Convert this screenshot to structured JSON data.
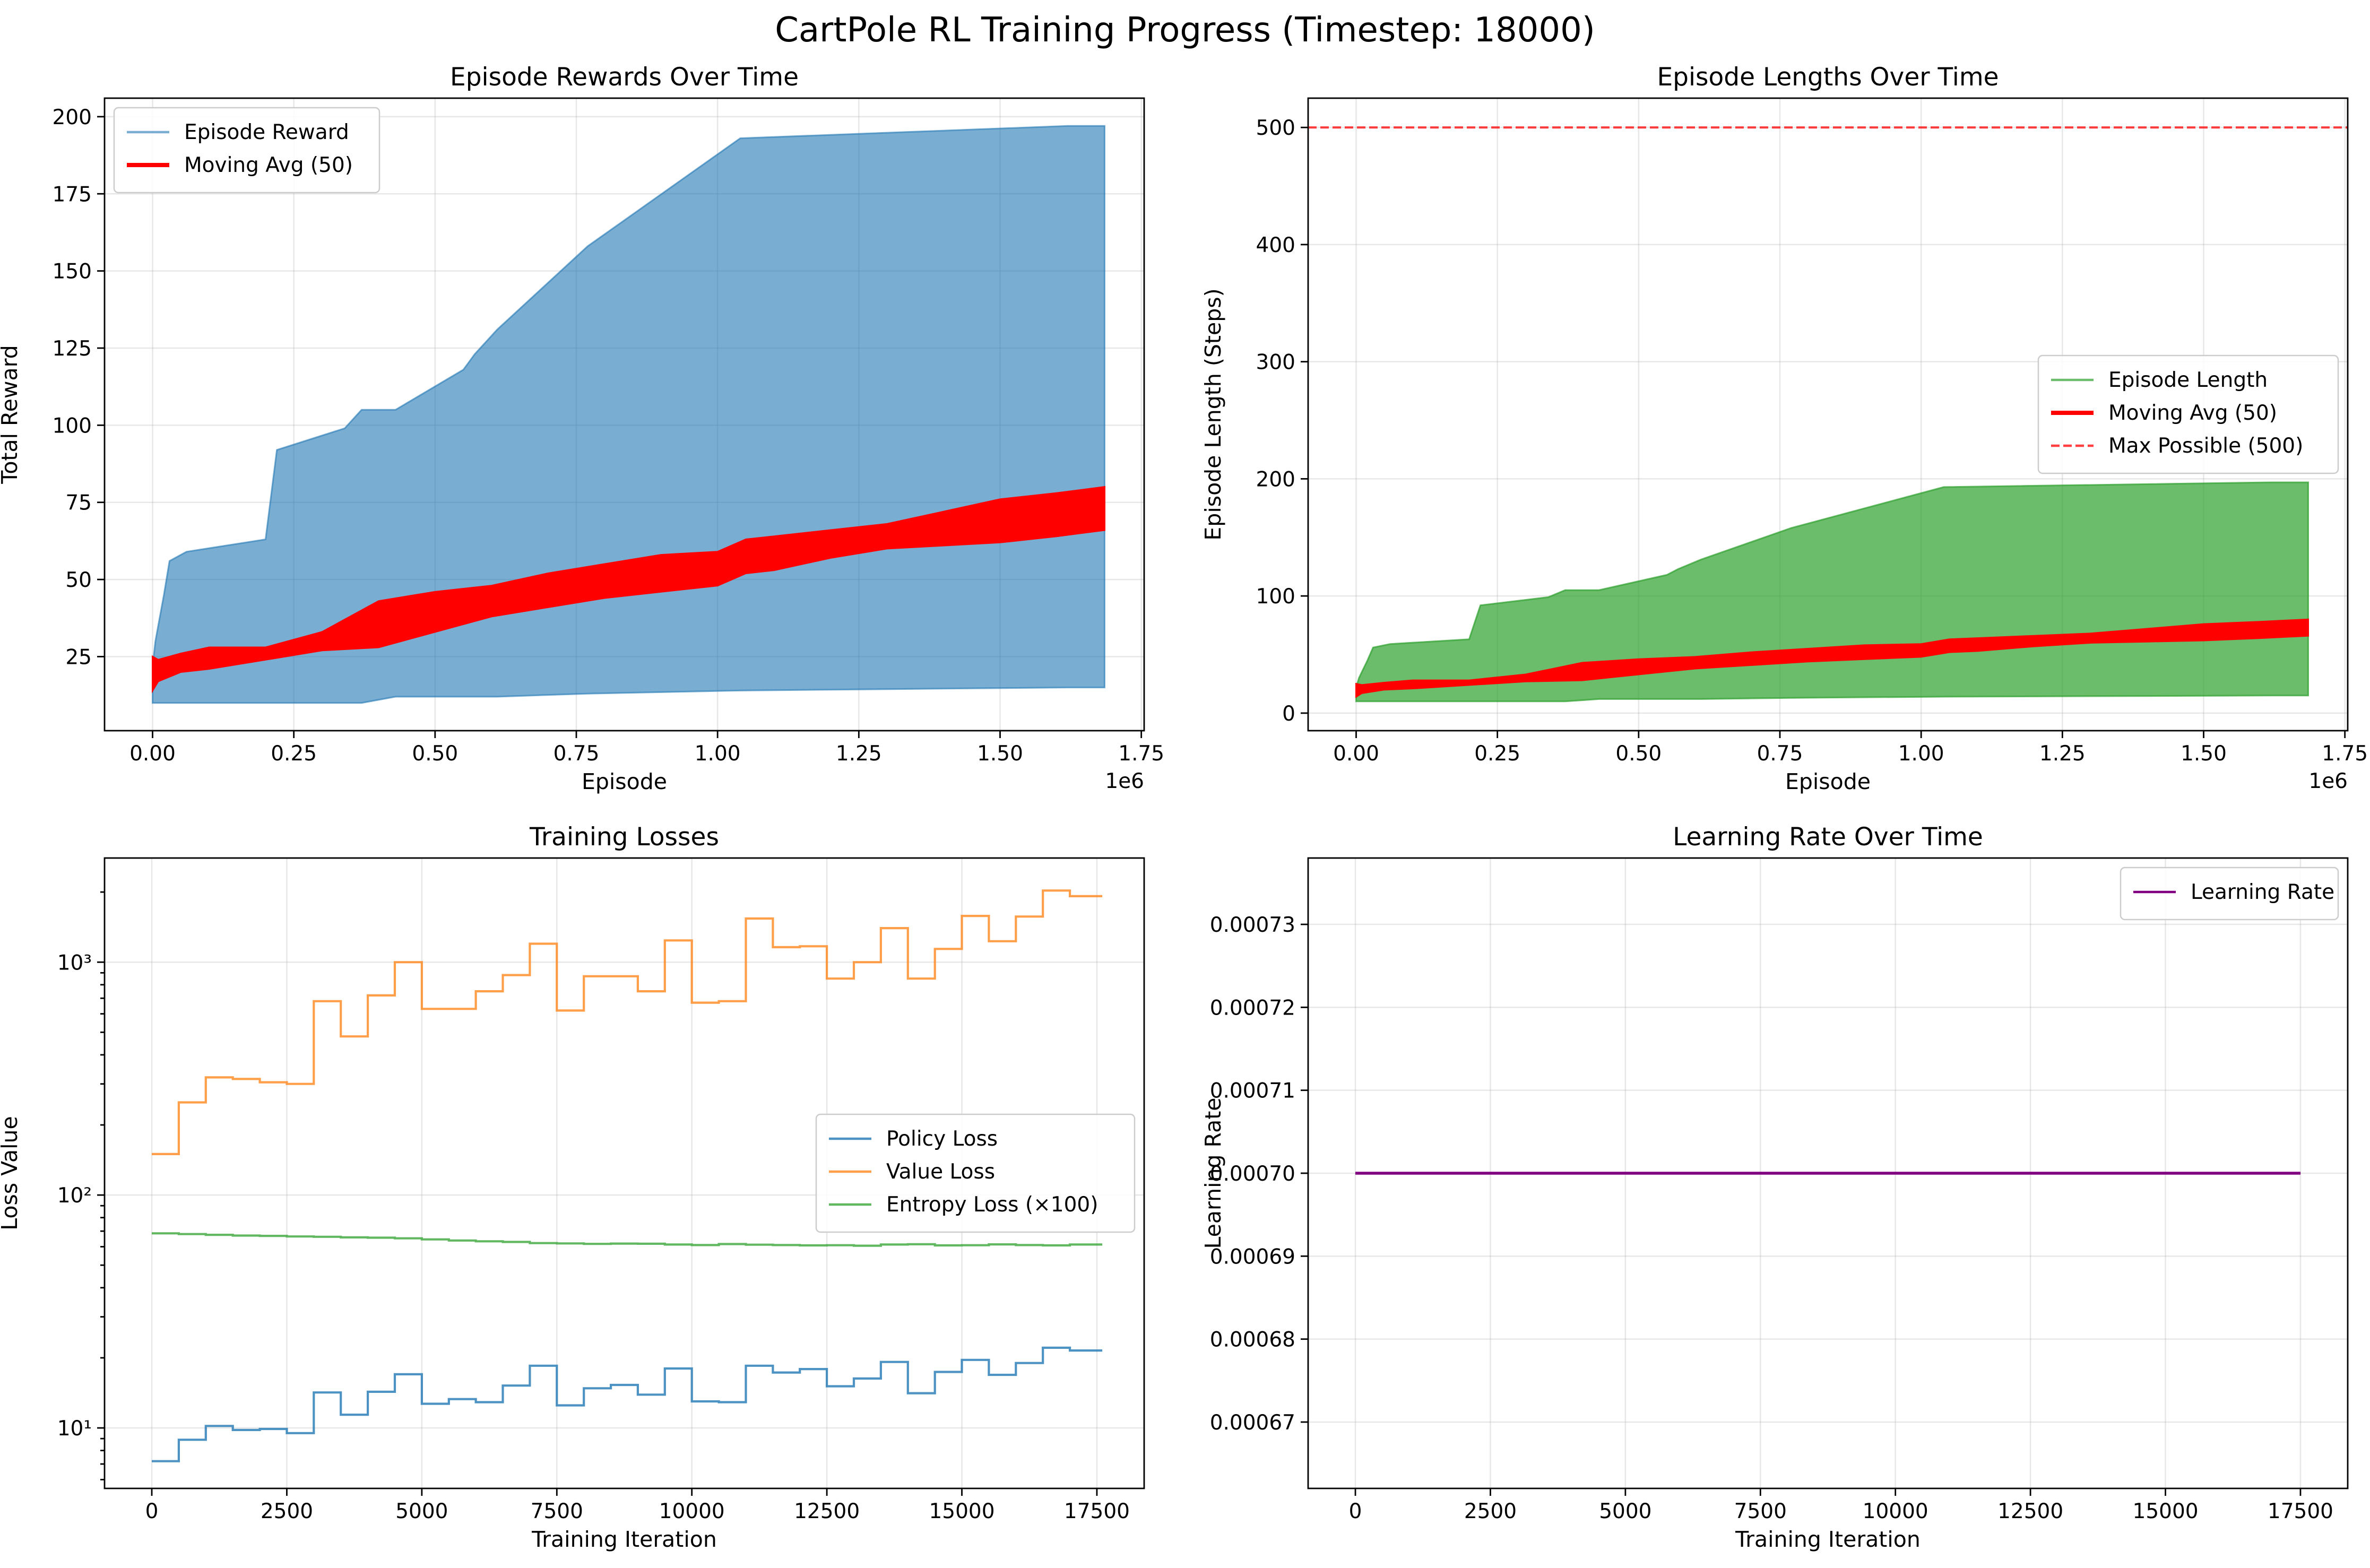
{
  "figure": {
    "title": "CartPole RL Training Progress (Timestep: 18000)"
  },
  "chart_data": [
    {
      "id": "rewards",
      "type": "area",
      "title": "Episode Rewards Over Time",
      "xlabel": "Episode",
      "ylabel": "Total Reward",
      "x_offset_label": "1e6",
      "xlim": [
        -0.085,
        1.755
      ],
      "ylim": [
        1,
        206
      ],
      "xticks": [
        0,
        0.25,
        0.5,
        0.75,
        1.0,
        1.25,
        1.5,
        1.75
      ],
      "xtick_labels": [
        "0.00",
        "0.25",
        "0.50",
        "0.75",
        "1.00",
        "1.25",
        "1.50",
        "1.75"
      ],
      "yticks": [
        25,
        50,
        75,
        100,
        125,
        150,
        175,
        200
      ],
      "ytick_labels": [
        "25",
        "50",
        "75",
        "100",
        "125",
        "150",
        "175",
        "200"
      ],
      "grid": true,
      "legend_position": "upper-left",
      "series": [
        {
          "name": "Episode Reward",
          "kind": "band",
          "color": "#1f77b4",
          "opacity": 0.6,
          "x": [
            0,
            0.005,
            0.01,
            0.02,
            0.03,
            0.06,
            0.2,
            0.22,
            0.34,
            0.37,
            0.4,
            0.43,
            0.55,
            0.57,
            0.61,
            0.77,
            1.04,
            1.62,
            1.685
          ],
          "upper": [
            22,
            30,
            35,
            45,
            56,
            59,
            63,
            92,
            99,
            105,
            105,
            105,
            118,
            123,
            131,
            158,
            193,
            197,
            197
          ],
          "lower": [
            10,
            10,
            10,
            10,
            10,
            10,
            10,
            10,
            10,
            10,
            11,
            12,
            12,
            12,
            12,
            13,
            14,
            15,
            15
          ]
        },
        {
          "name": "Moving Avg (50)",
          "kind": "band",
          "color": "#ff0000",
          "opacity": 1.0,
          "x": [
            0,
            0.01,
            0.05,
            0.1,
            0.2,
            0.3,
            0.4,
            0.5,
            0.6,
            0.7,
            0.8,
            0.9,
            1.0,
            1.05,
            1.1,
            1.2,
            1.3,
            1.4,
            1.5,
            1.6,
            1.685
          ],
          "upper": [
            25,
            24,
            26,
            28,
            28,
            33,
            43,
            46,
            48,
            52,
            55,
            58,
            59,
            63,
            64,
            66,
            68,
            72,
            76,
            78,
            80
          ],
          "lower": [
            14,
            17,
            20,
            21,
            24,
            27,
            28,
            33,
            38,
            41,
            44,
            46,
            48,
            52,
            53,
            57,
            60,
            61,
            62,
            64,
            66
          ]
        }
      ]
    },
    {
      "id": "lengths",
      "type": "area",
      "title": "Episode Lengths Over Time",
      "xlabel": "Episode",
      "ylabel": "Episode Length (Steps)",
      "x_offset_label": "1e6",
      "xlim": [
        -0.085,
        1.755
      ],
      "ylim": [
        -15,
        525
      ],
      "xticks": [
        0,
        0.25,
        0.5,
        0.75,
        1.0,
        1.25,
        1.5,
        1.75
      ],
      "xtick_labels": [
        "0.00",
        "0.25",
        "0.50",
        "0.75",
        "1.00",
        "1.25",
        "1.50",
        "1.75"
      ],
      "yticks": [
        0,
        100,
        200,
        300,
        400,
        500
      ],
      "ytick_labels": [
        "0",
        "100",
        "200",
        "300",
        "400",
        "500"
      ],
      "grid": true,
      "legend_position": "center-right",
      "series": [
        {
          "name": "Episode Length",
          "kind": "band",
          "color": "#2ca02c",
          "opacity": 0.7,
          "x": [
            0,
            0.005,
            0.01,
            0.02,
            0.03,
            0.06,
            0.2,
            0.22,
            0.34,
            0.37,
            0.4,
            0.43,
            0.55,
            0.57,
            0.61,
            0.77,
            1.04,
            1.62,
            1.685
          ],
          "upper": [
            22,
            30,
            35,
            45,
            56,
            59,
            63,
            92,
            99,
            105,
            105,
            105,
            118,
            123,
            131,
            158,
            193,
            197,
            197
          ],
          "lower": [
            10,
            10,
            10,
            10,
            10,
            10,
            10,
            10,
            10,
            10,
            11,
            12,
            12,
            12,
            12,
            13,
            14,
            15,
            15
          ]
        },
        {
          "name": "Moving Avg (50)",
          "kind": "band",
          "color": "#ff0000",
          "opacity": 1.0,
          "x": [
            0,
            0.01,
            0.05,
            0.1,
            0.2,
            0.3,
            0.4,
            0.5,
            0.6,
            0.7,
            0.8,
            0.9,
            1.0,
            1.05,
            1.1,
            1.2,
            1.3,
            1.4,
            1.5,
            1.6,
            1.685
          ],
          "upper": [
            25,
            24,
            26,
            28,
            28,
            33,
            43,
            46,
            48,
            52,
            55,
            58,
            59,
            63,
            64,
            66,
            68,
            72,
            76,
            78,
            80
          ],
          "lower": [
            14,
            17,
            20,
            21,
            24,
            27,
            28,
            33,
            38,
            41,
            44,
            46,
            48,
            52,
            53,
            57,
            60,
            61,
            62,
            64,
            66
          ]
        },
        {
          "name": "Max Possible (500)",
          "kind": "hline",
          "color": "#ff0000",
          "opacity": 0.75,
          "dashed": true,
          "y": 500
        }
      ]
    },
    {
      "id": "losses",
      "type": "line",
      "title": "Training Losses",
      "xlabel": "Training Iteration",
      "ylabel": "Loss Value",
      "yscale": "log",
      "xlim": [
        -875,
        18375
      ],
      "ylim": [
        5.5,
        2800
      ],
      "xticks": [
        0,
        2500,
        5000,
        7500,
        10000,
        12500,
        15000,
        17500
      ],
      "xtick_labels": [
        "0",
        "2500",
        "5000",
        "7500",
        "10000",
        "12500",
        "15000",
        "17500"
      ],
      "yticks": [
        10,
        100,
        1000
      ],
      "ytick_labels": [
        "10¹",
        "10²",
        "10³"
      ],
      "grid": true,
      "legend_position": "center-right",
      "series": [
        {
          "name": "Policy Loss",
          "kind": "step",
          "color": "#1f77b4",
          "opacity": 0.8,
          "x": [
            0,
            500,
            1000,
            1500,
            2000,
            2500,
            3000,
            3500,
            4000,
            4500,
            5000,
            5500,
            6000,
            6500,
            7000,
            7500,
            8000,
            8500,
            9000,
            9500,
            10000,
            10500,
            11000,
            11500,
            12000,
            12500,
            13000,
            13500,
            14000,
            14500,
            15000,
            15500,
            16000,
            16500,
            17000,
            17500
          ],
          "y": [
            7.2,
            8.9,
            10.2,
            9.8,
            9.9,
            9.5,
            14.2,
            11.4,
            14.3,
            17.0,
            12.7,
            13.3,
            12.9,
            15.2,
            18.5,
            12.5,
            14.8,
            15.3,
            13.9,
            18.0,
            13.0,
            12.9,
            18.5,
            17.3,
            17.9,
            15.1,
            16.3,
            19.2,
            14.1,
            17.4,
            19.6,
            16.9,
            19.0,
            22.1,
            21.5,
            21.5
          ]
        },
        {
          "name": "Value Loss",
          "kind": "step",
          "color": "#ff7f0e",
          "opacity": 0.75,
          "x": [
            0,
            500,
            1000,
            1500,
            2000,
            2500,
            3000,
            3500,
            4000,
            4500,
            5000,
            5500,
            6000,
            6500,
            7000,
            7500,
            8000,
            8500,
            9000,
            9500,
            10000,
            10500,
            11000,
            11500,
            12000,
            12500,
            13000,
            13500,
            14000,
            14500,
            15000,
            15500,
            16000,
            16500,
            17000,
            17500
          ],
          "y": [
            150,
            250,
            320,
            315,
            305,
            300,
            680,
            480,
            720,
            1000,
            630,
            630,
            750,
            880,
            1200,
            620,
            870,
            870,
            750,
            1240,
            670,
            680,
            1540,
            1160,
            1170,
            850,
            1000,
            1400,
            850,
            1140,
            1580,
            1230,
            1570,
            2030,
            1920,
            1920
          ]
        },
        {
          "name": "Entropy Loss (×100)",
          "kind": "step",
          "color": "#2ca02c",
          "opacity": 0.75,
          "x": [
            0,
            500,
            1000,
            1500,
            2000,
            2500,
            3000,
            3500,
            4000,
            4500,
            5000,
            5500,
            6000,
            6500,
            7000,
            7500,
            8000,
            8500,
            9000,
            9500,
            10000,
            10500,
            11000,
            11500,
            12000,
            12500,
            13000,
            13500,
            14000,
            14500,
            15000,
            15500,
            16000,
            16500,
            17000,
            17500
          ],
          "y": [
            68.5,
            68.0,
            67.5,
            67.0,
            66.8,
            66.4,
            66.2,
            65.8,
            65.6,
            65.2,
            64.5,
            63.8,
            63.3,
            62.9,
            62.2,
            62.0,
            61.7,
            61.9,
            61.8,
            61.3,
            61.0,
            61.6,
            61.2,
            61.0,
            60.8,
            60.9,
            60.6,
            61.3,
            61.5,
            60.8,
            60.9,
            61.4,
            61.0,
            60.8,
            61.3,
            61.3
          ]
        }
      ]
    },
    {
      "id": "lr",
      "type": "line",
      "title": "Learning Rate Over Time",
      "xlabel": "Training Iteration",
      "ylabel": "Learning Rate",
      "xlim": [
        -875,
        18375
      ],
      "ylim": [
        0.000662,
        0.000738
      ],
      "xticks": [
        0,
        2500,
        5000,
        7500,
        10000,
        12500,
        15000,
        17500
      ],
      "xtick_labels": [
        "0",
        "2500",
        "5000",
        "7500",
        "10000",
        "12500",
        "15000",
        "17500"
      ],
      "yticks": [
        0.00067,
        0.00068,
        0.00069,
        0.0007,
        0.00071,
        0.00072,
        0.00073
      ],
      "ytick_labels": [
        "0.00067",
        "0.00068",
        "0.00069",
        "0.00070",
        "0.00071",
        "0.00072",
        "0.00073"
      ],
      "grid": true,
      "legend_position": "upper-right",
      "series": [
        {
          "name": "Learning Rate",
          "kind": "line",
          "color": "#800080",
          "opacity": 1.0,
          "x": [
            0,
            17500
          ],
          "y": [
            0.0007,
            0.0007
          ]
        }
      ]
    }
  ]
}
